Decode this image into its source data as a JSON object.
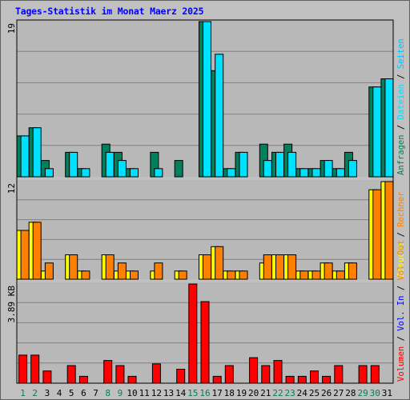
{
  "title": "Tages-Statistik im Monat Maerz 2025",
  "colors": {
    "background": "#c0c0c0",
    "plot_area": "#b8b8b8",
    "grid": "#808080",
    "frame_border": "#606060",
    "title": "#0000ff",
    "hits": "#00805c",
    "files": "#00e0ff",
    "pages": "#00c0ff",
    "visits": "#ffff00",
    "sites": "#ff8000",
    "kbytes": "#ff0000",
    "kbytes_in": "#0000ff",
    "kbytes_out": "#ff8000",
    "weekend_day": "#00805c",
    "weekday": "#000000",
    "separator": "#000000"
  },
  "chart_data": [
    {
      "type": "bar",
      "panel": "requests",
      "title": "",
      "ylabel": "",
      "ymax_label": "19",
      "ylim": [
        0,
        19
      ],
      "grid": true,
      "categories": [
        "1",
        "2",
        "3",
        "4",
        "5",
        "6",
        "7",
        "8",
        "9",
        "10",
        "11",
        "12",
        "13",
        "14",
        "15",
        "16",
        "17",
        "18",
        "19",
        "20",
        "21",
        "22",
        "23",
        "24",
        "25",
        "26",
        "27",
        "28",
        "29",
        "30",
        "31"
      ],
      "weekend_days": [
        "1",
        "2",
        "8",
        "9",
        "15",
        "16",
        "22",
        "23",
        "29",
        "30"
      ],
      "series": [
        {
          "name": "Anfragen",
          "color": "#00805c",
          "values": [
            5,
            6,
            2,
            0,
            3,
            1,
            0,
            4,
            3,
            1,
            0,
            3,
            0,
            2,
            0,
            19,
            13,
            1,
            3,
            0,
            4,
            3,
            4,
            1,
            1,
            2,
            1,
            3,
            0,
            11,
            12
          ]
        },
        {
          "name": "Dateien",
          "color": "#00e0ff",
          "values": [
            5,
            6,
            1,
            0,
            3,
            1,
            0,
            3,
            2,
            1,
            0,
            1,
            0,
            0,
            0,
            19,
            15,
            1,
            3,
            0,
            2,
            3,
            3,
            1,
            1,
            2,
            1,
            2,
            0,
            11,
            12
          ]
        }
      ],
      "legend": [
        "Anfragen",
        "Dateien",
        "Seiten"
      ],
      "legend_placement": "right, vertical"
    },
    {
      "type": "bar",
      "panel": "visits",
      "title": "",
      "ylabel": "",
      "ymax_label": "12",
      "ylim": [
        0,
        12
      ],
      "grid": true,
      "categories": [
        "1",
        "2",
        "3",
        "4",
        "5",
        "6",
        "7",
        "8",
        "9",
        "10",
        "11",
        "12",
        "13",
        "14",
        "15",
        "16",
        "17",
        "18",
        "19",
        "20",
        "21",
        "22",
        "23",
        "24",
        "25",
        "26",
        "27",
        "28",
        "29",
        "30",
        "31"
      ],
      "series": [
        {
          "name": "Besuche",
          "color": "#ffff00",
          "values": [
            6,
            7,
            1,
            0,
            3,
            1,
            0,
            3,
            1,
            1,
            0,
            1,
            0,
            1,
            0,
            3,
            4,
            1,
            1,
            0,
            2,
            3,
            3,
            1,
            1,
            2,
            1,
            2,
            0,
            11,
            12
          ]
        },
        {
          "name": "Rechner",
          "color": "#ff8000",
          "values": [
            6,
            7,
            2,
            0,
            3,
            1,
            0,
            3,
            2,
            1,
            0,
            2,
            0,
            1,
            0,
            3,
            4,
            1,
            1,
            0,
            3,
            3,
            3,
            1,
            1,
            2,
            1,
            2,
            0,
            11,
            12
          ]
        }
      ],
      "legend": [
        "Besuche",
        "Rechner"
      ],
      "legend_placement": "right, vertical"
    },
    {
      "type": "bar",
      "panel": "kbytes",
      "title": "",
      "ylabel": "",
      "ymax_label": "3.89 KB",
      "ylim": [
        0,
        3.89
      ],
      "grid": true,
      "categories": [
        "1",
        "2",
        "3",
        "4",
        "5",
        "6",
        "7",
        "8",
        "9",
        "10",
        "11",
        "12",
        "13",
        "14",
        "15",
        "16",
        "17",
        "18",
        "19",
        "20",
        "21",
        "22",
        "23",
        "24",
        "25",
        "26",
        "27",
        "28",
        "29",
        "30",
        "31"
      ],
      "series": [
        {
          "name": "Volumen",
          "color": "#ff0000",
          "values": [
            1.1,
            1.1,
            0.48,
            0,
            0.69,
            0.27,
            0,
            0.89,
            0.69,
            0.27,
            0,
            0.76,
            0,
            0.55,
            3.89,
            3.2,
            0.27,
            0.69,
            0,
            1.0,
            0.69,
            0.89,
            0.27,
            0.27,
            0.48,
            0.27,
            0.69,
            0,
            0.69,
            0.69,
            0
          ]
        }
      ],
      "legend": [
        "Volumen",
        "Vol. In",
        "Vol. Out"
      ],
      "legend_placement": "right, vertical"
    }
  ]
}
